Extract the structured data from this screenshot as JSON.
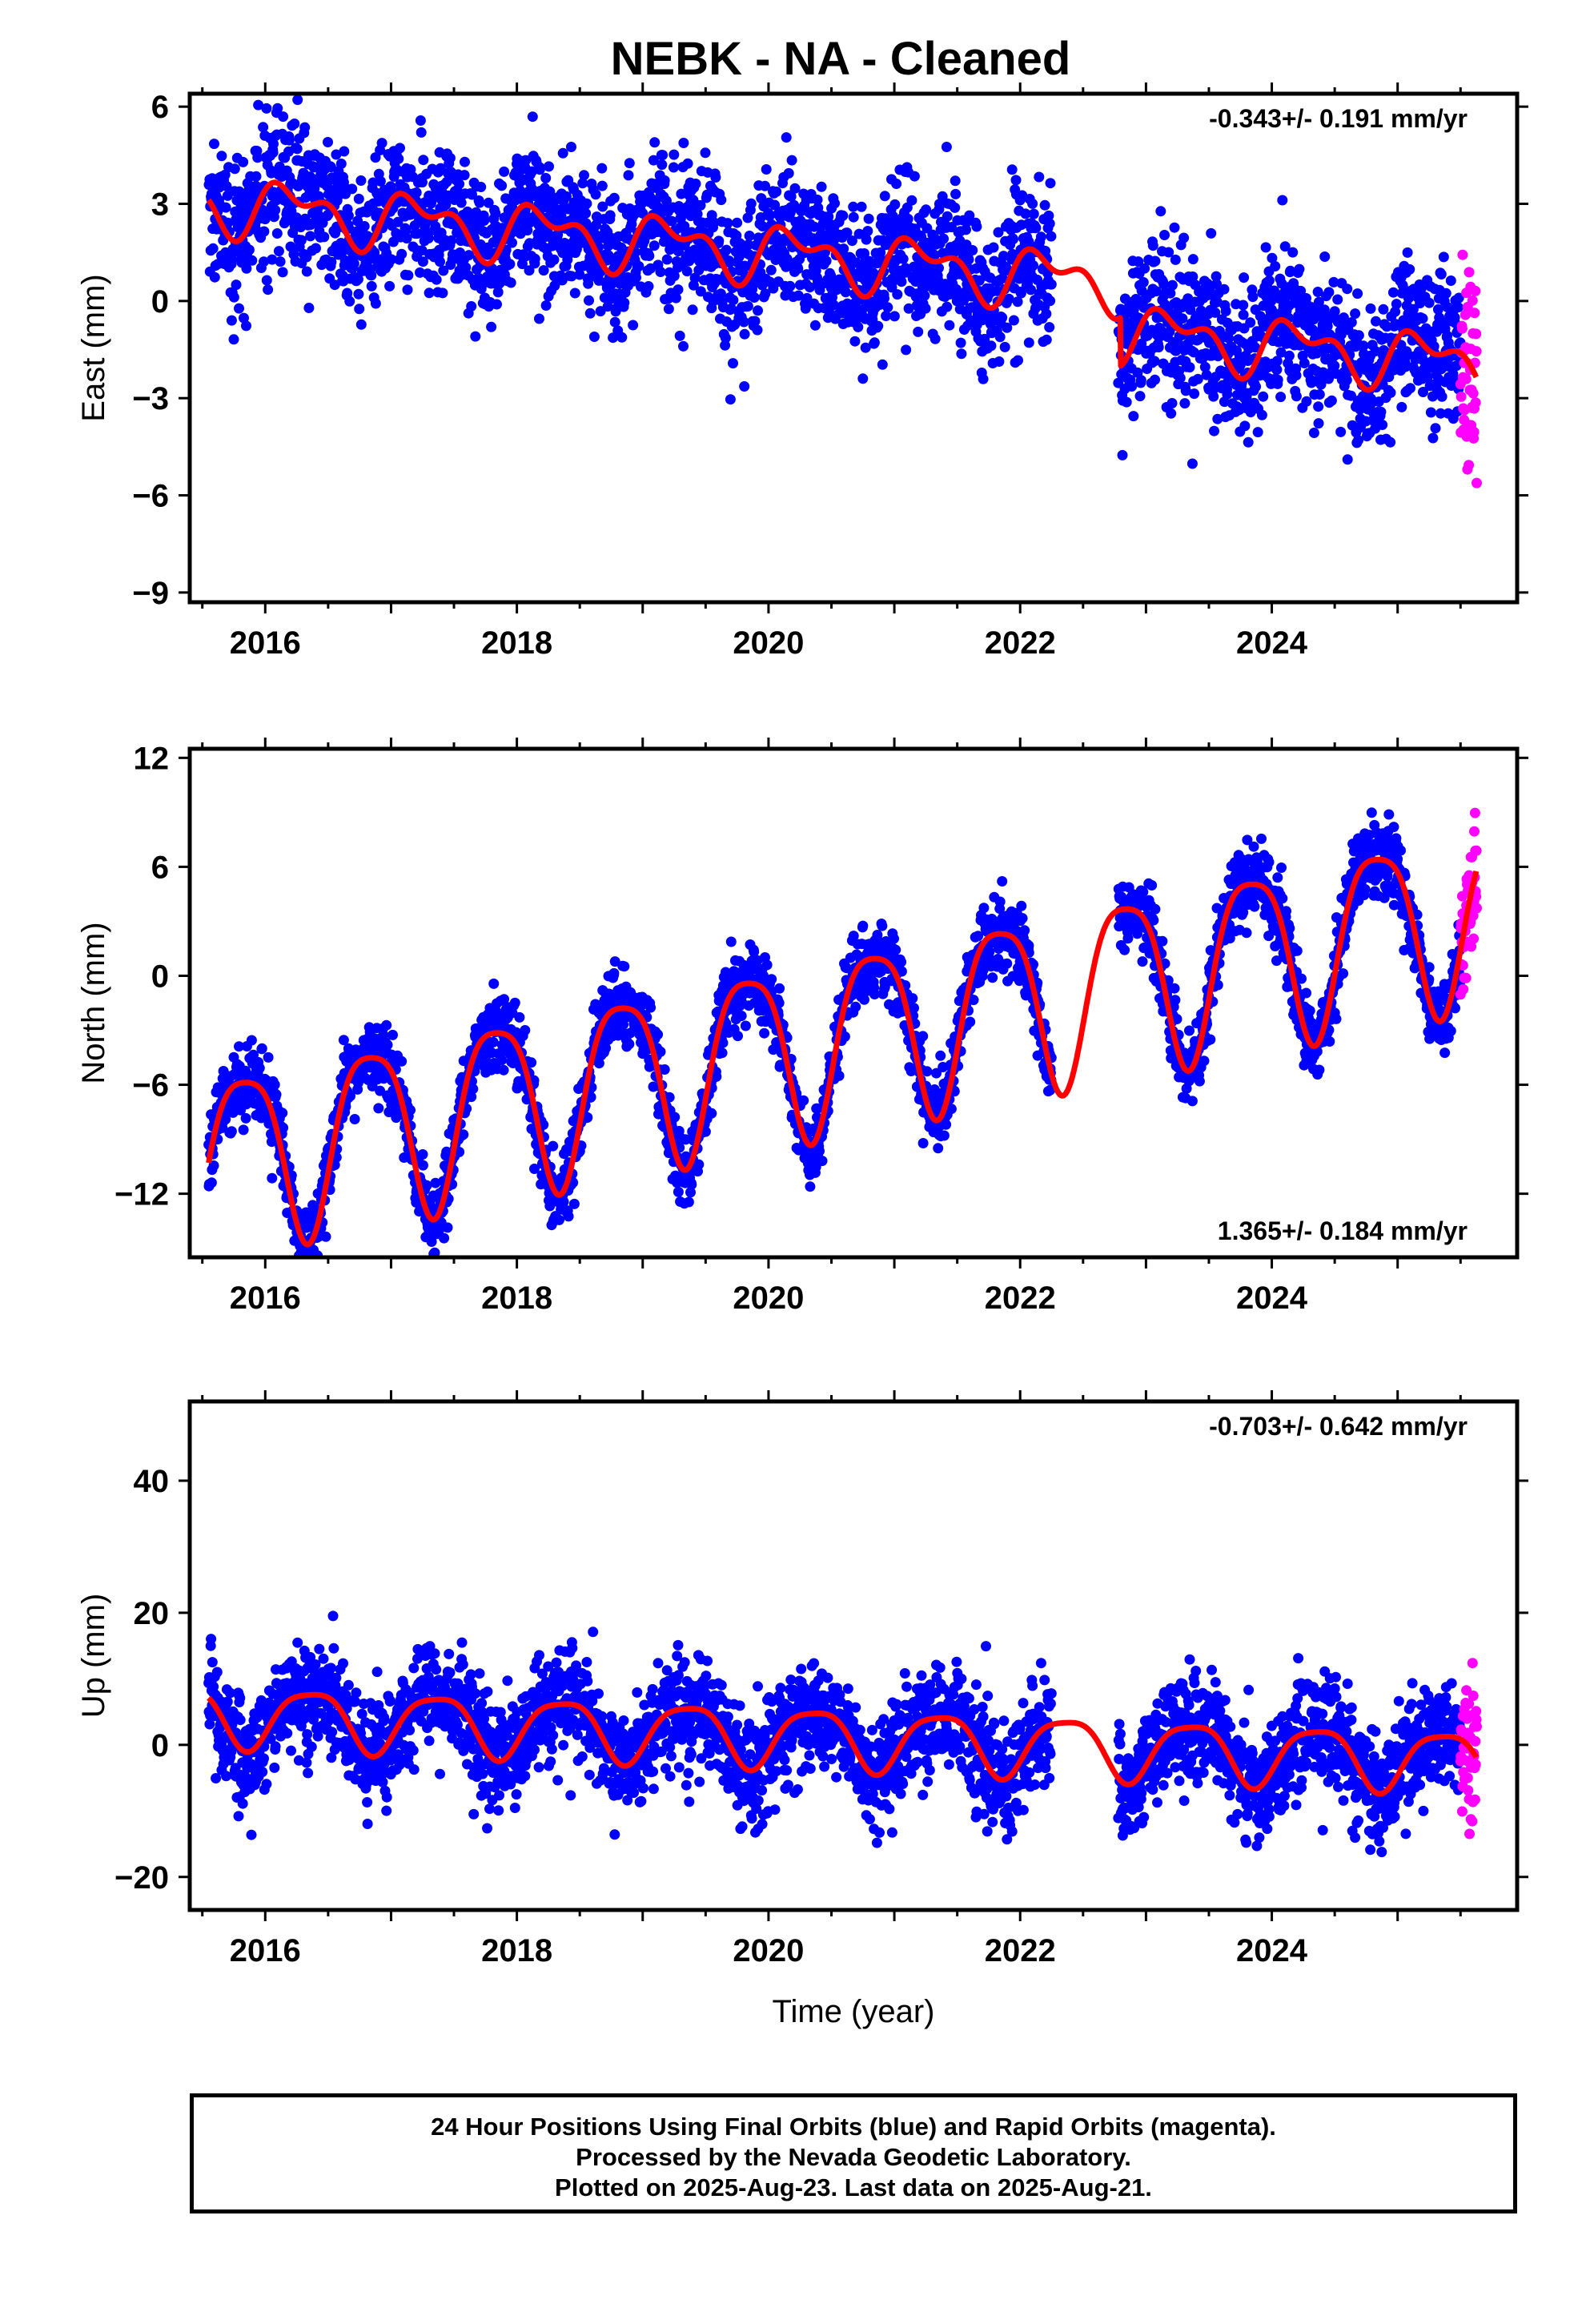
{
  "title": "NEBK  - NA - Cleaned",
  "colors": {
    "final": "#0000ff",
    "rapid": "#ff00ff",
    "model": "#ff0000",
    "axis": "#000000"
  },
  "chart_data": [
    {
      "type": "scatter",
      "component": "east",
      "ylabel": "East (mm)",
      "xlabel": "",
      "xlim": [
        2015.4,
        2025.95
      ],
      "ylim": [
        -9.3,
        6.4
      ],
      "xticks": [
        2016,
        2018,
        2020,
        2022,
        2024
      ],
      "yticks": [
        -9,
        -6,
        -3,
        0,
        3,
        6
      ],
      "rate_text": "-0.343+/- 0.191 mm/yr",
      "rate_position": "top-right",
      "model": {
        "offset": 1.5,
        "rate": -0.343,
        "ann_amp": 0.7,
        "ann_phase": 0.2,
        "semi_amp": 0.45,
        "semi_phase": 1.2,
        "steps": [
          [
            2022.8,
            -1.5
          ]
        ]
      },
      "scatter": {
        "noise": 1.1
      },
      "gaps": [
        [
          2022.25,
          2022.78
        ]
      ],
      "series": [
        {
          "name": "Final Orbits",
          "color": "#0000ff",
          "x_start": 2015.55,
          "x_end": 2025.5
        },
        {
          "name": "Rapid Orbits",
          "color": "#ff00ff",
          "x_start": 2025.5,
          "x_end": 2025.63
        }
      ]
    },
    {
      "type": "scatter",
      "component": "north",
      "ylabel": "North (mm)",
      "xlabel": "",
      "xlim": [
        2015.4,
        2025.95
      ],
      "ylim": [
        -15.5,
        12.5
      ],
      "xticks": [
        2016,
        2018,
        2020,
        2022,
        2024
      ],
      "yticks": [
        -12,
        -6,
        0,
        6,
        12
      ],
      "rate_text": "1.365+/- 0.184 mm/yr",
      "rate_position": "bottom-right",
      "model": {
        "offset": -4.0,
        "rate": 1.365,
        "ann_amp": 4.8,
        "ann_phase": 2.6,
        "semi_amp": 1.0,
        "semi_phase": 0.4,
        "steps": []
      },
      "scatter": {
        "noise": 1.0
      },
      "gaps": [
        [
          2022.25,
          2022.78
        ]
      ],
      "series": [
        {
          "name": "Final Orbits",
          "color": "#0000ff",
          "x_start": 2015.55,
          "x_end": 2025.5
        },
        {
          "name": "Rapid Orbits",
          "color": "#ff00ff",
          "x_start": 2025.5,
          "x_end": 2025.63
        }
      ]
    },
    {
      "type": "scatter",
      "component": "up",
      "ylabel": "Up (mm)",
      "xlabel": "Time (year)",
      "xlim": [
        2015.4,
        2025.95
      ],
      "ylim": [
        -25,
        52
      ],
      "xticks": [
        2016,
        2018,
        2020,
        2022,
        2024
      ],
      "yticks": [
        -20,
        0,
        20,
        40
      ],
      "rate_text": "-0.703+/- 0.642 mm/yr",
      "rate_position": "top-right",
      "model": {
        "offset": 1.5,
        "rate": -0.703,
        "ann_amp": 4.5,
        "ann_phase": -0.7,
        "semi_amp": 1.0,
        "semi_phase": 0.3,
        "steps": []
      },
      "scatter": {
        "noise": 4.0
      },
      "gaps": [
        [
          2022.25,
          2022.78
        ]
      ],
      "series": [
        {
          "name": "Final Orbits",
          "color": "#0000ff",
          "x_start": 2015.55,
          "x_end": 2025.5
        },
        {
          "name": "Rapid Orbits",
          "color": "#ff00ff",
          "x_start": 2025.5,
          "x_end": 2025.63
        }
      ]
    }
  ],
  "footer": {
    "line1": "24 Hour Positions Using Final Orbits (blue) and Rapid Orbits (magenta).",
    "line2": "Processed by the Nevada Geodetic Laboratory.",
    "line3": "Plotted on 2025-Aug-23. Last data on 2025-Aug-21."
  }
}
